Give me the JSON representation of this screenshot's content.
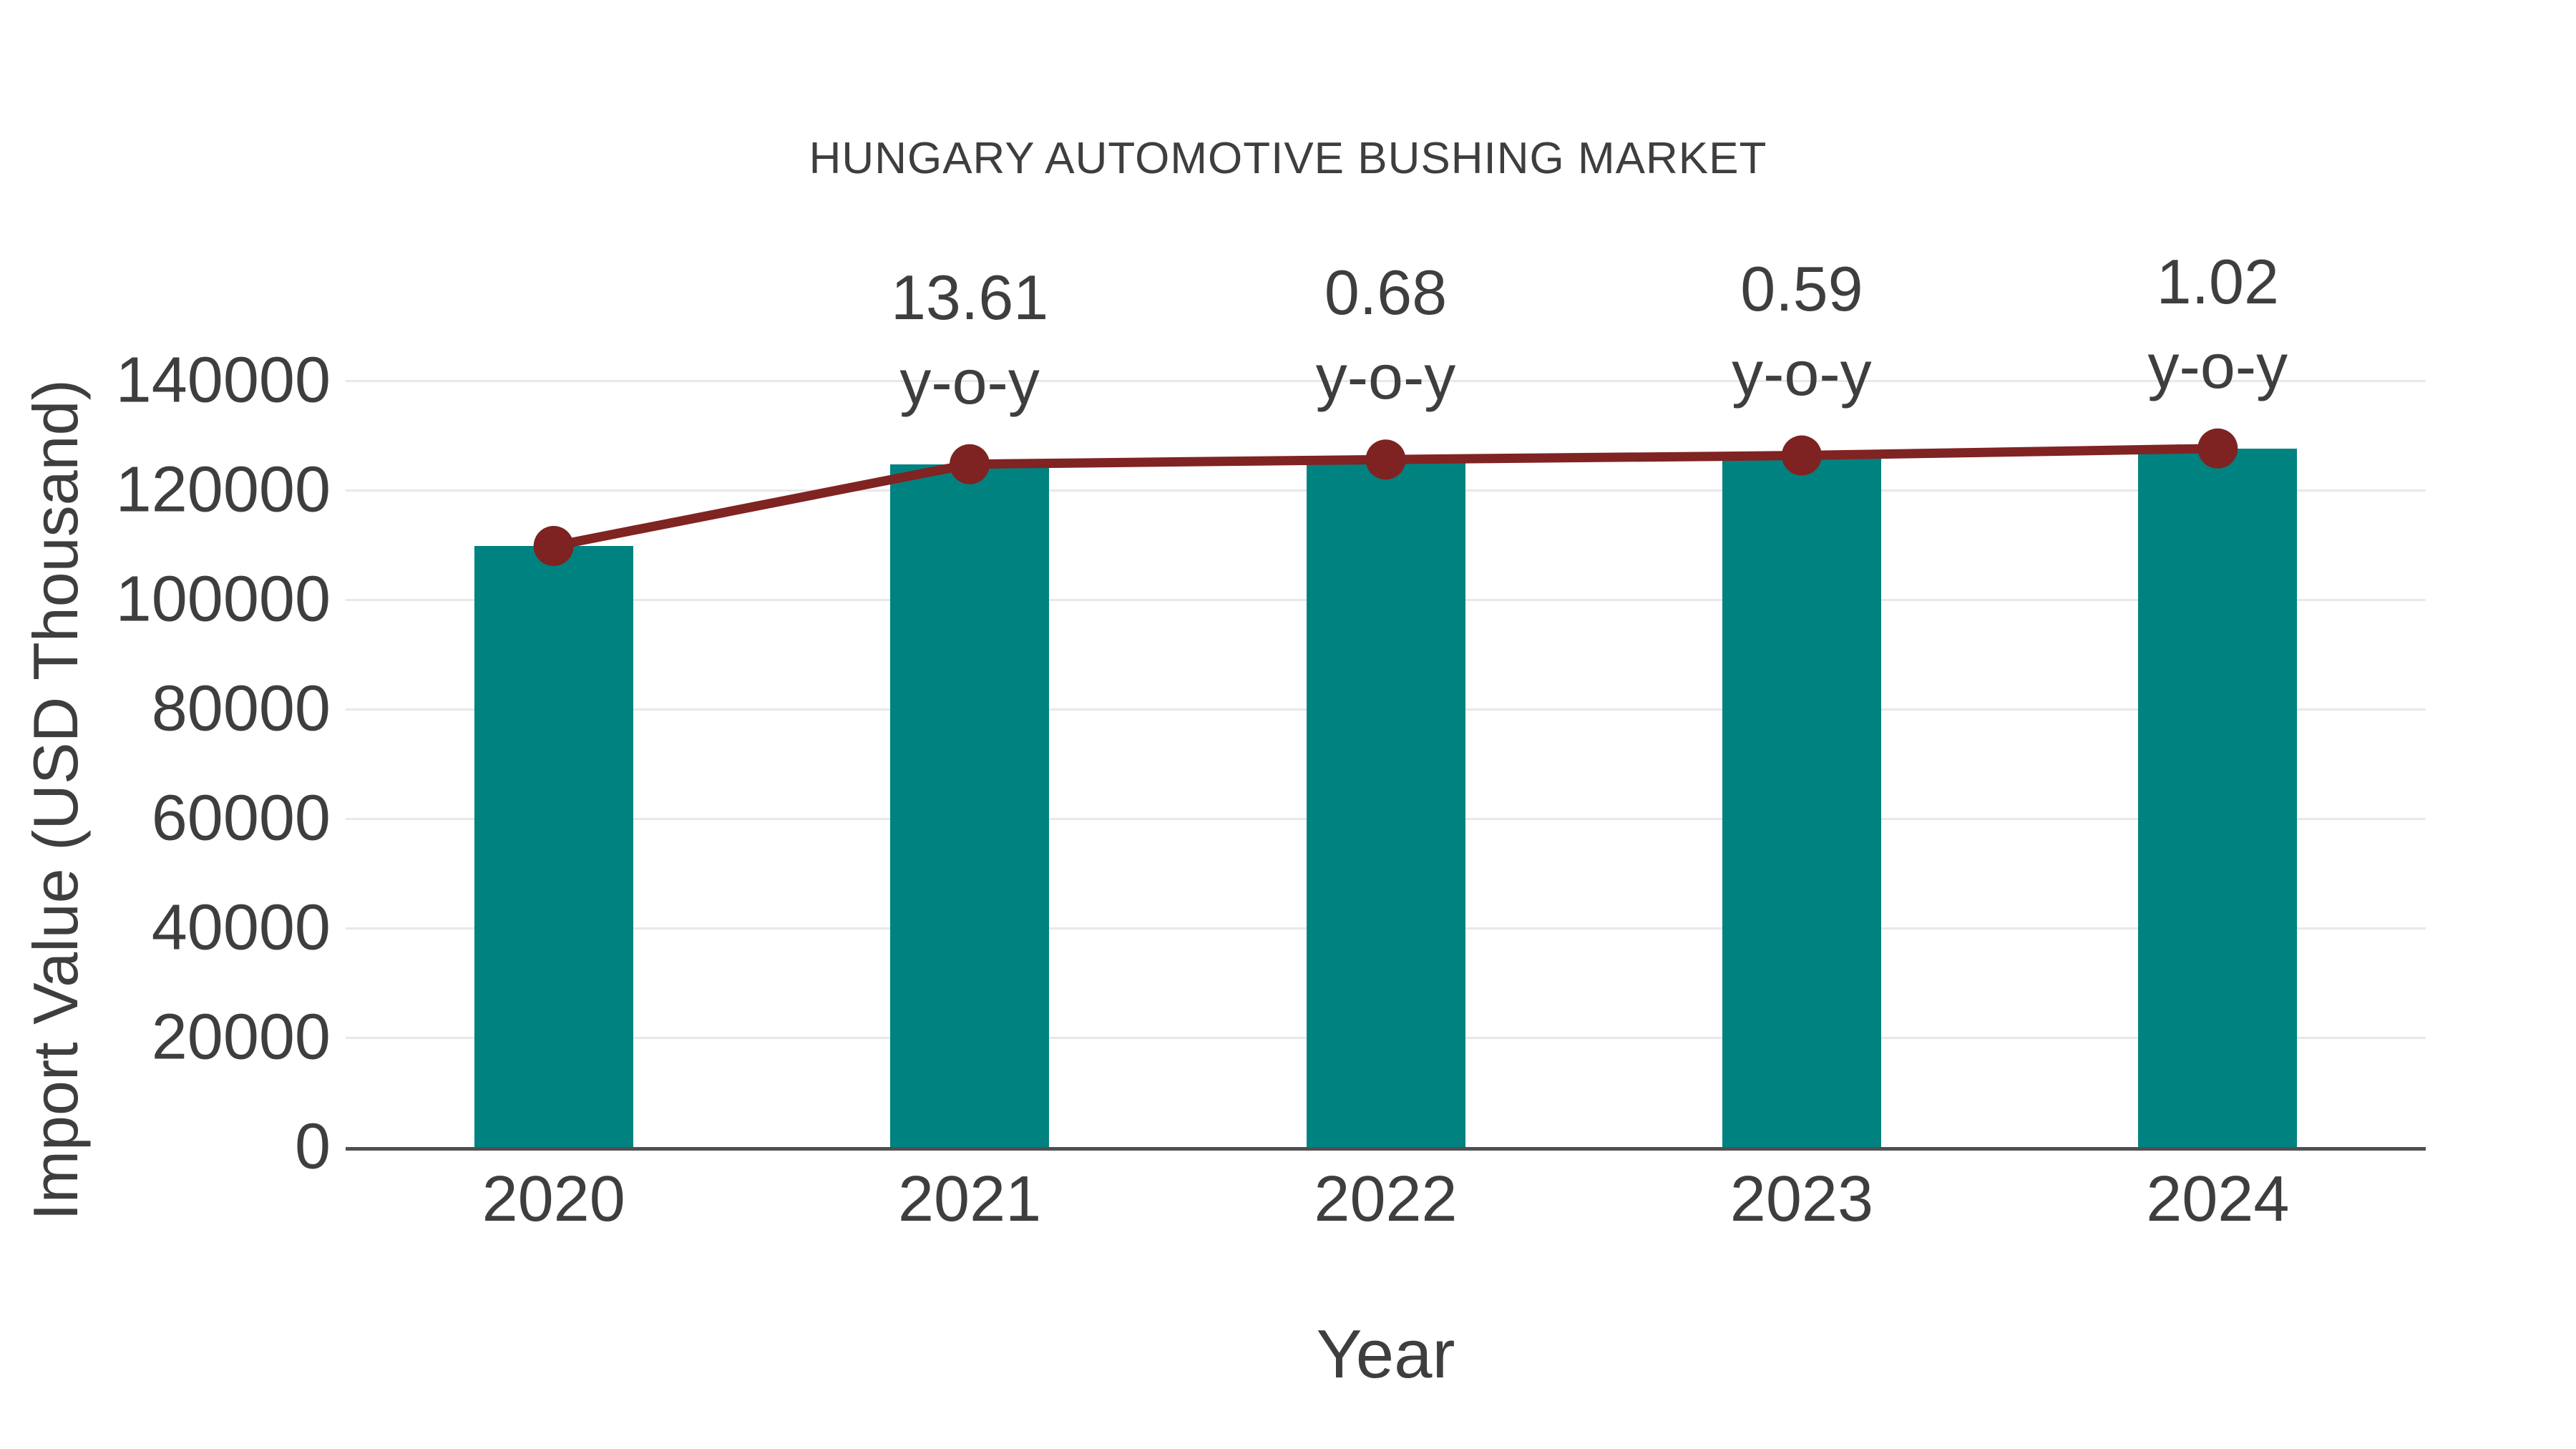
{
  "chart_data": {
    "type": "bar",
    "title": "HUNGARY AUTOMOTIVE BUSHING MARKET",
    "xlabel": "Year",
    "ylabel": "Import Value (USD Thousand)",
    "categories": [
      "2020",
      "2021",
      "2022",
      "2023",
      "2024"
    ],
    "series": [
      {
        "name": "import-value-bars",
        "type": "bar",
        "values": [
          109800,
          124743,
          125591,
          126332,
          127620
        ]
      },
      {
        "name": "import-value-trend-line",
        "type": "line",
        "values": [
          109800,
          124743,
          125591,
          126332,
          127620
        ]
      }
    ],
    "annotations": [
      {
        "category": "2021",
        "value_label": "13.61",
        "unit_label": "y-o-y"
      },
      {
        "category": "2022",
        "value_label": "0.68",
        "unit_label": "y-o-y"
      },
      {
        "category": "2023",
        "value_label": "0.59",
        "unit_label": "y-o-y"
      },
      {
        "category": "2024",
        "value_label": "1.02",
        "unit_label": "y-o-y"
      }
    ],
    "yticks": [
      0,
      20000,
      40000,
      60000,
      80000,
      100000,
      120000,
      140000
    ],
    "ylim": [
      0,
      140000
    ],
    "grid": "horizontal",
    "legend_position": "none",
    "colors": {
      "bar": "#008280",
      "line": "#802323",
      "marker": "#7e2322",
      "text": "#3e3e3e",
      "gridline": "#e8e8e8",
      "axis_line": "#4f4f4f",
      "background": "#ffffff"
    }
  }
}
